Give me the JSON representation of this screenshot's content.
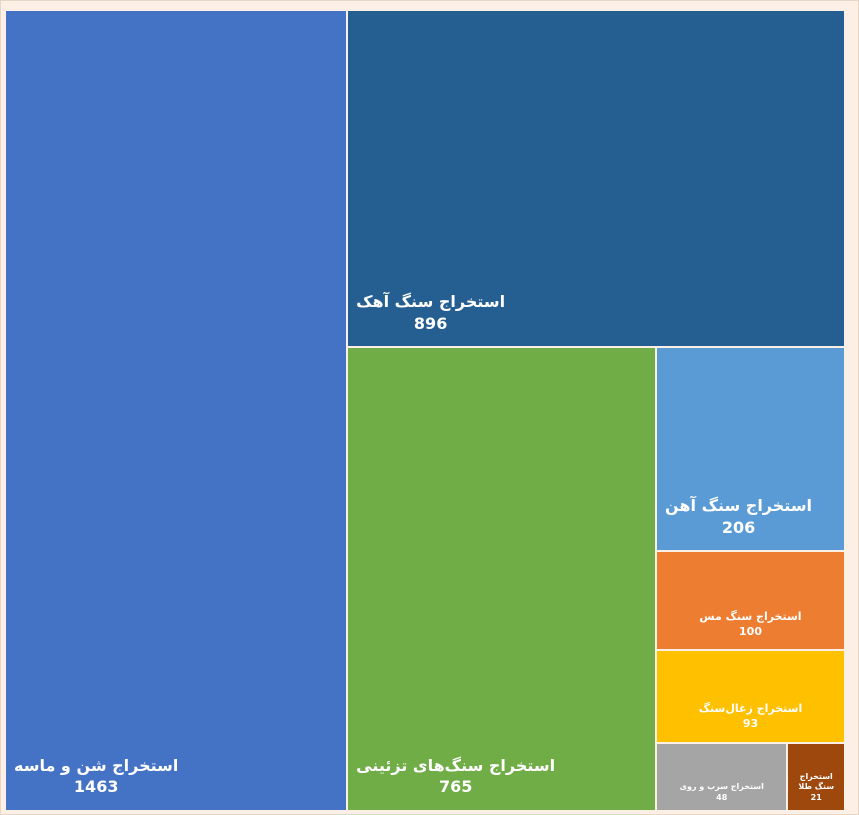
{
  "chart_data": {
    "type": "treemap",
    "categories": [
      "استخراج شن و ماسه",
      "استخراج سنگ آهک",
      "استخراج سنگ‌های تزئینی",
      "استخراج سنگ آهن",
      "استخراج سنگ مس",
      "استخراج زغال‌سنگ",
      "استخراج سرب و روی",
      "استخراج سنگ طلا"
    ],
    "values": [
      1463,
      896,
      765,
      206,
      100,
      93,
      48,
      21
    ],
    "colors": [
      "#4472c4",
      "#255e91",
      "#70ad47",
      "#5b9bd5",
      "#ed7d31",
      "#ffc000",
      "#a5a5a5",
      "#9e480e"
    ]
  }
}
